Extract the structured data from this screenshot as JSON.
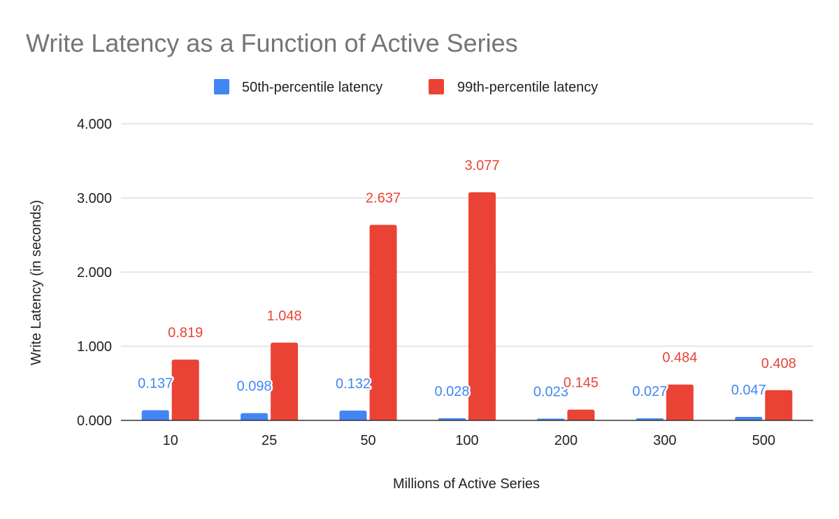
{
  "chart_data": {
    "type": "bar",
    "title": "Write Latency as a Function of Active Series",
    "xlabel": "Millions of Active Series",
    "ylabel": "Write Latency (in seconds)",
    "categories": [
      "10",
      "25",
      "50",
      "100",
      "200",
      "300",
      "500"
    ],
    "ylim": [
      0,
      4
    ],
    "yticks": [
      0,
      1,
      2,
      3,
      4
    ],
    "ytick_labels": [
      "0.000",
      "1.000",
      "2.000",
      "3.000",
      "4.000"
    ],
    "grid": true,
    "legend_position": "top",
    "series": [
      {
        "name": "50th-percentile latency",
        "color": "#4285f4",
        "values": [
          0.137,
          0.098,
          0.132,
          0.028,
          0.023,
          0.027,
          0.047
        ],
        "labels": [
          "0.137",
          "0.098",
          "0.132",
          "0.028",
          "0.023",
          "0.027",
          "0.047"
        ]
      },
      {
        "name": "99th-percentile latency",
        "color": "#ea4335",
        "values": [
          0.819,
          1.048,
          2.637,
          3.077,
          0.145,
          0.484,
          0.408
        ],
        "labels": [
          "0.819",
          "1.048",
          "2.637",
          "3.077",
          "0.145",
          "0.484",
          "0.408"
        ]
      }
    ]
  }
}
